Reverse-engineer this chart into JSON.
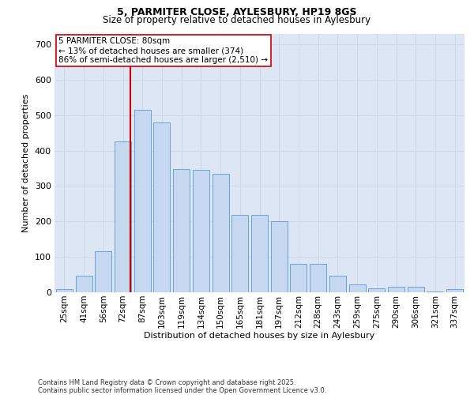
{
  "title_line1": "5, PARMITER CLOSE, AYLESBURY, HP19 8GS",
  "title_line2": "Size of property relative to detached houses in Aylesbury",
  "xlabel": "Distribution of detached houses by size in Aylesbury",
  "ylabel": "Number of detached properties",
  "categories": [
    "25sqm",
    "41sqm",
    "56sqm",
    "72sqm",
    "87sqm",
    "103sqm",
    "119sqm",
    "134sqm",
    "150sqm",
    "165sqm",
    "181sqm",
    "197sqm",
    "212sqm",
    "228sqm",
    "243sqm",
    "259sqm",
    "275sqm",
    "290sqm",
    "306sqm",
    "321sqm",
    "337sqm"
  ],
  "values": [
    8,
    47,
    115,
    425,
    515,
    480,
    348,
    345,
    335,
    218,
    218,
    200,
    80,
    80,
    47,
    22,
    12,
    15,
    15,
    3,
    8
  ],
  "bar_color": "#c5d8f0",
  "bar_edge_color": "#5b9bd5",
  "vline_color": "#cc0000",
  "vline_pos": 3.4,
  "annotation_text": "5 PARMITER CLOSE: 80sqm\n← 13% of detached houses are smaller (374)\n86% of semi-detached houses are larger (2,510) →",
  "annotation_box_color": "#ffffff",
  "annotation_box_edge": "#cc0000",
  "grid_color": "#d0d8e8",
  "background_color": "#dce6f5",
  "footer_text": "Contains HM Land Registry data © Crown copyright and database right 2025.\nContains public sector information licensed under the Open Government Licence v3.0.",
  "ylim": [
    0,
    730
  ],
  "yticks": [
    0,
    100,
    200,
    300,
    400,
    500,
    600,
    700
  ]
}
